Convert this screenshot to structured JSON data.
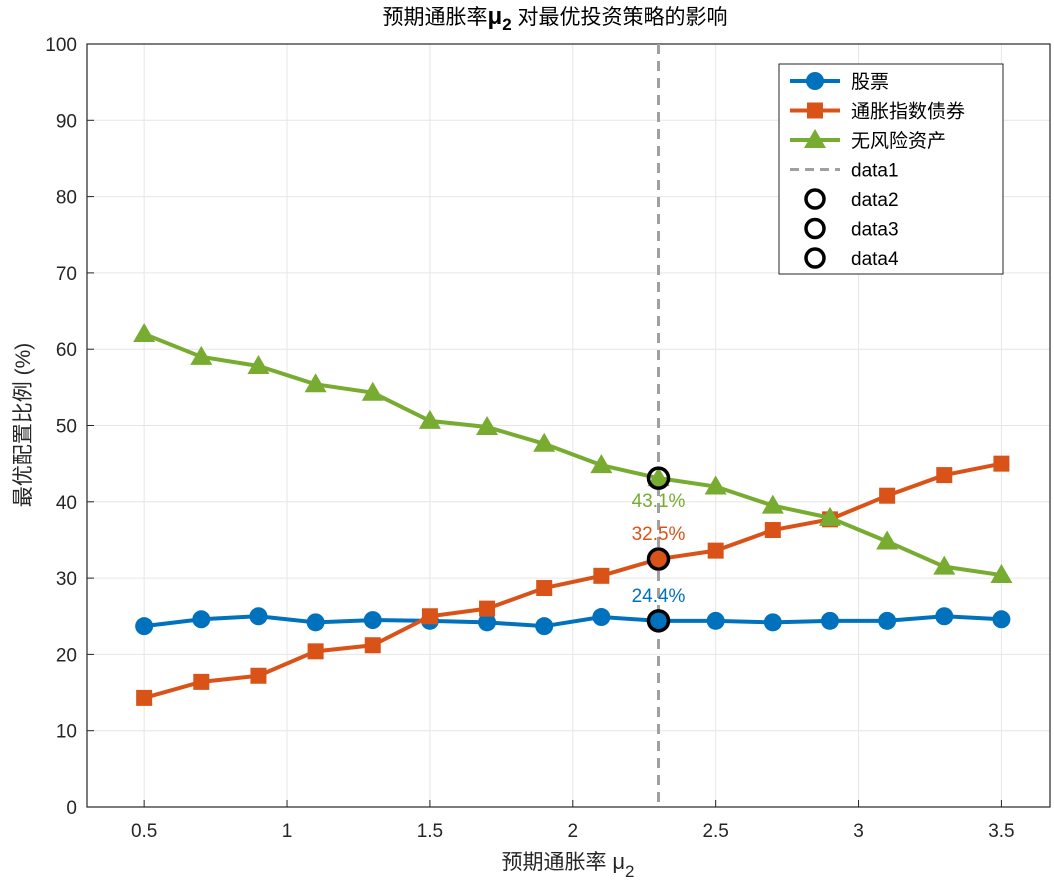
{
  "chart_data": {
    "type": "line",
    "title": "预期通胀率μ2 对最优投资策略的影响",
    "title_parts": {
      "pre": "预期通胀率",
      "mu": "μ",
      "sub": "2",
      "post": " 对最优投资策略的影响"
    },
    "xlabel": "预期通胀率 μ2",
    "xlabel_parts": {
      "pre": "预期通胀率 ",
      "mu": "μ",
      "sub": "2"
    },
    "ylabel": "最优配置比例 (%)",
    "xlim": [
      0.3,
      3.67
    ],
    "ylim": [
      0,
      100
    ],
    "grid": true,
    "legend_placement": "top-right",
    "xticks": [
      0.5,
      1,
      1.5,
      2,
      2.5,
      3,
      3.5
    ],
    "xtick_labels": [
      "0.5",
      "1",
      "1.5",
      "2",
      "2.5",
      "3",
      "3.5"
    ],
    "yticks": [
      0,
      10,
      20,
      30,
      40,
      50,
      60,
      70,
      80,
      90,
      100
    ],
    "ytick_labels": [
      "0",
      "10",
      "20",
      "30",
      "40",
      "50",
      "60",
      "70",
      "80",
      "90",
      "100"
    ],
    "x": [
      0.5,
      0.7,
      0.9,
      1.1,
      1.3,
      1.5,
      1.7,
      1.9,
      2.1,
      2.3,
      2.5,
      2.7,
      2.9,
      3.1,
      3.3,
      3.5
    ],
    "series": [
      {
        "name": "股票",
        "color": "#0072BD",
        "marker": "circle",
        "values": [
          23.7,
          24.6,
          25.0,
          24.2,
          24.5,
          24.4,
          24.2,
          23.7,
          24.9,
          24.4,
          24.4,
          24.2,
          24.4,
          24.4,
          25.0,
          24.6
        ]
      },
      {
        "name": "通胀指数债券",
        "color": "#D95319",
        "marker": "square",
        "values": [
          14.3,
          16.4,
          17.2,
          20.4,
          21.2,
          25.0,
          26.0,
          28.7,
          30.3,
          32.5,
          33.6,
          36.3,
          37.7,
          40.8,
          43.5,
          45.0
        ]
      },
      {
        "name": "无风险资产",
        "color": "#77AC30",
        "marker": "triangle",
        "values": [
          62.0,
          59.0,
          57.8,
          55.4,
          54.3,
          50.6,
          49.8,
          47.6,
          44.8,
          43.1,
          42.0,
          39.5,
          37.9,
          34.8,
          31.5,
          30.4
        ]
      }
    ],
    "vline": {
      "name": "data1",
      "x": 2.3,
      "color": "#A0A0A0"
    },
    "highlights": [
      {
        "name": "data2",
        "x": 2.3,
        "y": 24.4,
        "label": "24.4%",
        "color": "#0072BD"
      },
      {
        "name": "data3",
        "x": 2.3,
        "y": 32.5,
        "label": "32.5%",
        "color": "#D95319"
      },
      {
        "name": "data4",
        "x": 2.3,
        "y": 43.1,
        "label": "43.1%",
        "color": "#77AC30"
      }
    ]
  }
}
